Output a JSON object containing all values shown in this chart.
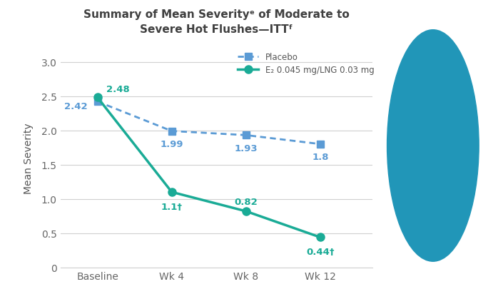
{
  "title_line1": "Summary of Mean Severityᵉ of Moderate to",
  "title_line2": "Severe Hot Flushes—ITTᶠ",
  "xlabel_ticks": [
    "Baseline",
    "Wk 4",
    "Wk 8",
    "Wk 12"
  ],
  "ylabel": "Mean Severity",
  "ylim": [
    0,
    3.2
  ],
  "yticks": [
    0,
    0.5,
    1.0,
    1.5,
    2.0,
    2.5,
    3.0
  ],
  "placebo_values": [
    2.42,
    1.99,
    1.93,
    1.8
  ],
  "placebo_labels": [
    "2.42",
    "1.99",
    "1.93",
    "1.8"
  ],
  "treatment_values": [
    2.48,
    1.1,
    0.82,
    0.44
  ],
  "treatment_labels": [
    "2.48",
    "1.1†",
    "0.82",
    "0.44†"
  ],
  "placebo_color": "#5b9bd5",
  "treatment_color": "#1aab96",
  "legend_placebo": "Placebo",
  "legend_treatment": "E₂ 0.045 mg/LNG 0.03 mg",
  "background_color": "#ffffff",
  "right_panel_color": "#1a1a2e",
  "plot_bg_color": "#ffffff",
  "grid_color": "#d0d0d0",
  "title_color": "#404040",
  "label_color": "#555555",
  "tick_color": "#666666"
}
